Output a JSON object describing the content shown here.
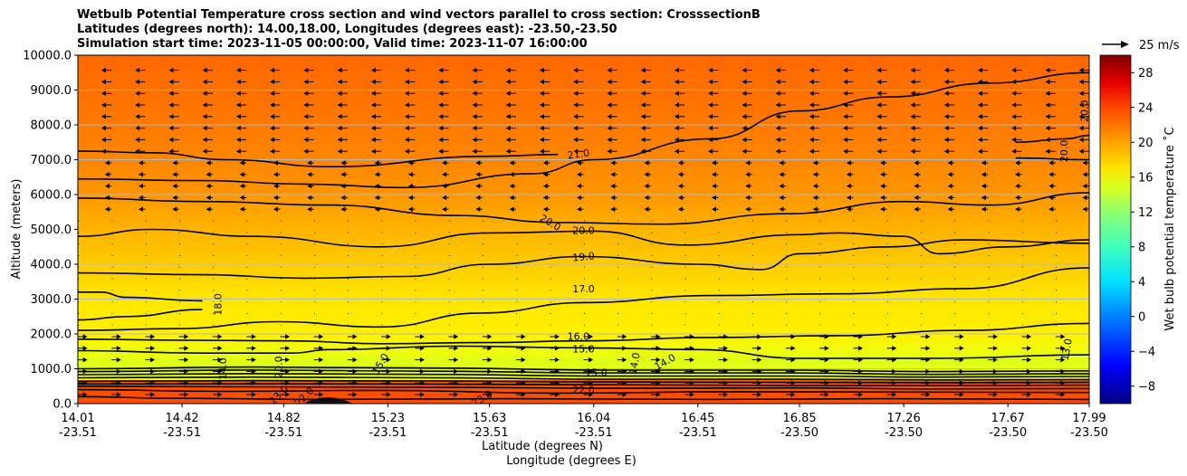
{
  "chart_data": {
    "type": "heatmap",
    "title_lines": [
      "Wetbulb Potential Temperature cross section and wind vectors parallel to cross section: CrosssectionB",
      "Latitudes (degrees north): 14.00,18.00, Longitudes (degrees east): -23.50,-23.50",
      "Simulation start time: 2023-11-05 00:00:00, Valid time: 2023-11-07 16:00:00"
    ],
    "ylabel": "Altitude (meters)",
    "xlabel_1": "Latitude (degrees N)",
    "xlabel_2": "Longitude (degrees E)",
    "ylim": [
      0,
      10000
    ],
    "yticks": [
      "0.0",
      "1000.0",
      "2000.0",
      "3000.0",
      "4000.0",
      "5000.0",
      "6000.0",
      "7000.0",
      "8000.0",
      "9000.0",
      "10000.0"
    ],
    "ytick_values": [
      0,
      1000,
      2000,
      3000,
      4000,
      5000,
      6000,
      7000,
      8000,
      9000,
      10000
    ],
    "xlim": [
      14.01,
      17.99
    ],
    "xtick_values": [
      14.01,
      14.42,
      14.82,
      15.23,
      15.63,
      16.04,
      16.45,
      16.85,
      17.26,
      17.67,
      17.99
    ],
    "xticks_lat": [
      "14.01",
      "14.42",
      "14.82",
      "15.23",
      "15.63",
      "16.04",
      "16.45",
      "16.85",
      "17.26",
      "17.67",
      "17.99"
    ],
    "xticks_lon": [
      "-23.51",
      "-23.51",
      "-23.51",
      "-23.51",
      "-23.51",
      "-23.51",
      "-23.51",
      "-23.50",
      "-23.50",
      "-23.50",
      "-23.50"
    ],
    "grid": "horizontal",
    "colorbar": {
      "label": "Wet bulb potential temperature ˚C",
      "range": [
        -10,
        30
      ],
      "ticks": [
        "28",
        "24",
        "20",
        "16",
        "12",
        "8",
        "4",
        "0",
        "−4",
        "−8"
      ],
      "tick_values": [
        28,
        24,
        20,
        16,
        12,
        8,
        4,
        0,
        -4,
        -8
      ],
      "colors": [
        "#000080",
        "#0000ff",
        "#0080ff",
        "#00e0ff",
        "#40ffc0",
        "#90ff70",
        "#d8ff20",
        "#ffe000",
        "#ff9a00",
        "#ff5000",
        "#e80000",
        "#800000"
      ]
    },
    "quiver_key": "25 m/s",
    "contours": [
      {
        "level": 22,
        "points": [
          [
            14.01,
            200
          ],
          [
            14.4,
            150
          ],
          [
            15.0,
            120
          ],
          [
            15.7,
            140
          ],
          [
            16.5,
            120
          ],
          [
            17.2,
            140
          ],
          [
            17.99,
            120
          ]
        ]
      },
      {
        "level": 21,
        "points": [
          [
            14.01,
            400
          ],
          [
            14.6,
            350
          ],
          [
            15.2,
            380
          ],
          [
            15.9,
            300
          ],
          [
            16.6,
            340
          ],
          [
            17.3,
            330
          ],
          [
            17.99,
            320
          ]
        ]
      },
      {
        "level": 20,
        "points": [
          [
            14.01,
            500
          ],
          [
            14.7,
            480
          ],
          [
            15.4,
            470
          ],
          [
            16.1,
            440
          ],
          [
            16.8,
            450
          ],
          [
            17.4,
            420
          ],
          [
            17.99,
            430
          ]
        ]
      },
      {
        "level": 19,
        "points": [
          [
            14.01,
            560
          ],
          [
            14.7,
            570
          ],
          [
            15.4,
            560
          ],
          [
            16.1,
            540
          ],
          [
            16.8,
            520
          ],
          [
            17.4,
            520
          ],
          [
            17.99,
            530
          ]
        ]
      },
      {
        "level": 18,
        "points": [
          [
            14.01,
            640
          ],
          [
            14.7,
            660
          ],
          [
            15.4,
            650
          ],
          [
            16.1,
            620
          ],
          [
            16.8,
            610
          ],
          [
            17.4,
            600
          ],
          [
            17.99,
            610
          ]
        ]
      },
      {
        "level": 17,
        "points": [
          [
            14.01,
            740
          ],
          [
            14.7,
            760
          ],
          [
            15.4,
            740
          ],
          [
            16.1,
            700
          ],
          [
            16.8,
            700
          ],
          [
            17.4,
            680
          ],
          [
            17.99,
            690
          ]
        ]
      },
      {
        "level": 16,
        "points": [
          [
            14.01,
            830
          ],
          [
            14.7,
            860
          ],
          [
            15.4,
            840
          ],
          [
            16.1,
            790
          ],
          [
            16.8,
            790
          ],
          [
            17.4,
            760
          ],
          [
            17.99,
            780
          ]
        ]
      },
      {
        "level": 15,
        "points": [
          [
            14.01,
            920
          ],
          [
            14.7,
            960
          ],
          [
            15.4,
            930
          ],
          [
            16.1,
            880
          ],
          [
            16.8,
            880
          ],
          [
            17.4,
            840
          ],
          [
            17.99,
            860
          ]
        ]
      },
      {
        "level": 14,
        "points": [
          [
            14.01,
            1000
          ],
          [
            14.7,
            1050
          ],
          [
            15.4,
            1020
          ],
          [
            16.1,
            960
          ],
          [
            16.8,
            960
          ],
          [
            17.4,
            920
          ],
          [
            17.99,
            940
          ]
        ]
      },
      {
        "level": 15,
        "points": [
          [
            14.01,
            1520
          ],
          [
            14.5,
            1450
          ],
          [
            14.85,
            1450
          ],
          [
            15.0,
            1550
          ],
          [
            15.5,
            1650
          ],
          [
            16.0,
            1600
          ],
          [
            16.45,
            1550
          ],
          [
            16.85,
            1300
          ],
          [
            17.4,
            1300
          ],
          [
            17.99,
            1400
          ]
        ]
      },
      {
        "level": 16,
        "points": [
          [
            14.01,
            1850
          ],
          [
            14.4,
            1820
          ],
          [
            14.85,
            1800
          ],
          [
            15.2,
            1720
          ],
          [
            15.6,
            1750
          ],
          [
            16.0,
            1800
          ],
          [
            16.5,
            1900
          ],
          [
            17.0,
            1950
          ],
          [
            17.5,
            2100
          ],
          [
            17.99,
            2300
          ]
        ]
      },
      {
        "level": 17,
        "points": [
          [
            14.01,
            2100
          ],
          [
            14.4,
            2150
          ],
          [
            14.8,
            2350
          ],
          [
            15.2,
            2200
          ],
          [
            15.6,
            2600
          ],
          [
            16.0,
            2900
          ],
          [
            16.5,
            3100
          ],
          [
            17.0,
            3150
          ],
          [
            17.5,
            3300
          ],
          [
            17.99,
            3900
          ]
        ]
      },
      {
        "level": 18,
        "points": [
          [
            14.01,
            3200
          ],
          [
            14.1,
            3200
          ],
          [
            14.2,
            3050
          ],
          [
            14.5,
            2950
          ]
        ]
      },
      {
        "level": 18,
        "points": [
          [
            14.01,
            2400
          ],
          [
            14.2,
            2500
          ],
          [
            14.5,
            2700
          ]
        ]
      },
      {
        "level": 19,
        "points": [
          [
            14.01,
            3750
          ],
          [
            14.5,
            3700
          ],
          [
            14.9,
            3600
          ],
          [
            15.3,
            3650
          ],
          [
            15.63,
            4000
          ],
          [
            16.0,
            4220
          ],
          [
            16.45,
            4000
          ],
          [
            16.7,
            3850
          ],
          [
            16.85,
            4300
          ],
          [
            17.2,
            4500
          ],
          [
            17.5,
            4700
          ],
          [
            17.99,
            4600
          ]
        ]
      },
      {
        "level": 20,
        "points": [
          [
            14.01,
            4800
          ],
          [
            14.3,
            5000
          ],
          [
            14.7,
            4800
          ],
          [
            15.2,
            4500
          ],
          [
            15.63,
            4900
          ],
          [
            16.04,
            4950
          ],
          [
            16.4,
            4550
          ],
          [
            16.85,
            4850
          ],
          [
            17.0,
            4900
          ],
          [
            17.26,
            4800
          ],
          [
            17.4,
            4300
          ],
          [
            17.67,
            4500
          ],
          [
            17.99,
            4700
          ]
        ]
      },
      {
        "level": 20,
        "points": [
          [
            14.01,
            5900
          ],
          [
            14.5,
            5800
          ],
          [
            15.0,
            5700
          ],
          [
            15.5,
            5400
          ],
          [
            15.9,
            5200
          ],
          [
            16.3,
            5150
          ],
          [
            16.8,
            5450
          ],
          [
            17.26,
            5800
          ],
          [
            17.6,
            5700
          ],
          [
            17.99,
            6050
          ]
        ]
      },
      {
        "level": 21,
        "points": [
          [
            14.01,
            6450
          ],
          [
            14.5,
            6400
          ],
          [
            14.9,
            6300
          ],
          [
            15.3,
            6200
          ],
          [
            15.8,
            6600
          ],
          [
            16.04,
            7000
          ],
          [
            16.5,
            7600
          ],
          [
            16.85,
            8400
          ],
          [
            17.2,
            8800
          ],
          [
            17.6,
            9200
          ],
          [
            17.99,
            9500
          ]
        ]
      },
      {
        "level": 21,
        "points": [
          [
            14.01,
            7250
          ],
          [
            14.3,
            7200
          ],
          [
            14.6,
            7000
          ],
          [
            15.0,
            6800
          ],
          [
            15.63,
            7100
          ],
          [
            15.9,
            7150
          ]
        ]
      },
      {
        "level": 20,
        "points": [
          [
            17.7,
            7500
          ],
          [
            17.9,
            7600
          ],
          [
            17.99,
            7700
          ]
        ]
      },
      {
        "level": 20,
        "points": [
          [
            17.7,
            7050
          ],
          [
            17.99,
            7000
          ]
        ]
      }
    ],
    "contour_labels": [
      {
        "text": "21.0",
        "x": 15.98,
        "y": 7170,
        "rot": -8
      },
      {
        "text": "20.0",
        "x": 16.0,
        "y": 4980,
        "rot": 0
      },
      {
        "text": "20.0",
        "x": 15.87,
        "y": 5200,
        "rot": 30
      },
      {
        "text": "19.0",
        "x": 16.0,
        "y": 4220,
        "rot": -5
      },
      {
        "text": "17.0",
        "x": 16.0,
        "y": 3300,
        "rot": 0
      },
      {
        "text": "18.0",
        "x": 14.56,
        "y": 2850,
        "rot": -90
      },
      {
        "text": "16.0",
        "x": 15.98,
        "y": 1930,
        "rot": 0
      },
      {
        "text": "15.0",
        "x": 16.0,
        "y": 1570,
        "rot": 0
      },
      {
        "text": "14.0",
        "x": 16.2,
        "y": 1150,
        "rot": -80
      },
      {
        "text": "14.0",
        "x": 16.32,
        "y": 1200,
        "rot": -30
      },
      {
        "text": "13.0",
        "x": 17.9,
        "y": 1550,
        "rot": -80
      },
      {
        "text": "20.0",
        "x": 17.89,
        "y": 7250,
        "rot": -90
      },
      {
        "text": "20.0",
        "x": 17.97,
        "y": 8400,
        "rot": -90
      },
      {
        "text": "15.0",
        "x": 15.2,
        "y": 1150,
        "rot": -60
      },
      {
        "text": "14.0",
        "x": 14.58,
        "y": 1000,
        "rot": -90
      },
      {
        "text": "20.0",
        "x": 14.8,
        "y": 1050,
        "rot": -90
      },
      {
        "text": "23.0",
        "x": 14.8,
        "y": 250,
        "rot": -45
      },
      {
        "text": "22.0",
        "x": 14.9,
        "y": 200,
        "rot": -45
      },
      {
        "text": "23.0",
        "x": 15.6,
        "y": 150,
        "rot": -30
      },
      {
        "text": "22.0",
        "x": 16.0,
        "y": 400,
        "rot": 0
      },
      {
        "text": "15.0",
        "x": 16.05,
        "y": 900,
        "rot": 0
      }
    ]
  }
}
